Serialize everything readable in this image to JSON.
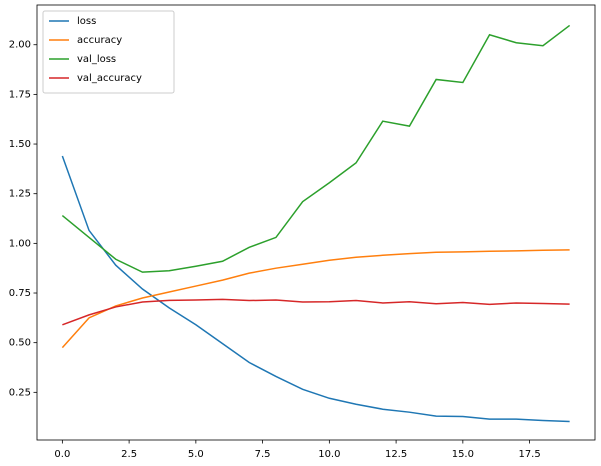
{
  "chart_data": {
    "type": "line",
    "x": [
      0,
      1,
      2,
      3,
      4,
      5,
      6,
      7,
      8,
      9,
      10,
      11,
      12,
      13,
      14,
      15,
      16,
      17,
      18,
      19
    ],
    "series": [
      {
        "name": "loss",
        "color": "#1f77b4",
        "values": [
          1.44,
          1.065,
          0.89,
          0.77,
          0.675,
          0.59,
          0.495,
          0.4,
          0.33,
          0.265,
          0.22,
          0.19,
          0.165,
          0.15,
          0.13,
          0.128,
          0.115,
          0.115,
          0.108,
          0.103
        ]
      },
      {
        "name": "accuracy",
        "color": "#ff7f0e",
        "values": [
          0.475,
          0.625,
          0.685,
          0.725,
          0.755,
          0.785,
          0.815,
          0.85,
          0.875,
          0.895,
          0.915,
          0.93,
          0.94,
          0.948,
          0.955,
          0.957,
          0.96,
          0.962,
          0.965,
          0.967
        ]
      },
      {
        "name": "val_loss",
        "color": "#2ca02c",
        "values": [
          1.14,
          1.03,
          0.92,
          0.855,
          0.862,
          0.885,
          0.91,
          0.98,
          1.03,
          1.21,
          1.305,
          1.405,
          1.615,
          1.59,
          1.825,
          1.81,
          2.05,
          2.01,
          1.995,
          2.097
        ]
      },
      {
        "name": "val_accuracy",
        "color": "#d62728",
        "values": [
          0.59,
          0.64,
          0.68,
          0.705,
          0.713,
          0.715,
          0.718,
          0.712,
          0.715,
          0.705,
          0.706,
          0.712,
          0.7,
          0.706,
          0.696,
          0.702,
          0.693,
          0.7,
          0.697,
          0.694
        ]
      }
    ],
    "xlim": [
      -0.95,
      19.95
    ],
    "xticks": [
      {
        "value": 0,
        "label": "0.0"
      },
      2.5,
      {
        "value": 5,
        "label": "5.0"
      },
      7.5,
      {
        "value": 10,
        "label": "10.0"
      },
      12.5,
      {
        "value": 15,
        "label": "15.0"
      },
      17.5
    ],
    "ylim": [
      0.01,
      2.2
    ],
    "yticks": [
      0.25,
      {
        "value": 0.5,
        "label": "0.50"
      },
      0.75,
      {
        "value": 1,
        "label": "1.00"
      },
      1.25,
      {
        "value": 1.5,
        "label": "1.50"
      },
      1.75,
      {
        "value": 2,
        "label": "2.00"
      }
    ],
    "grid": false,
    "legend": "upper-left"
  }
}
